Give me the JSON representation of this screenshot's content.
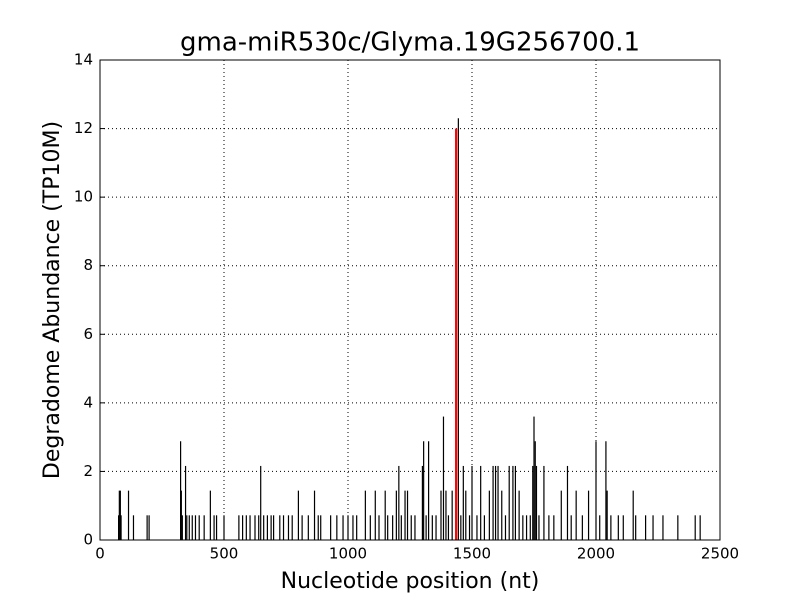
{
  "chart_data": {
    "type": "stem",
    "title": "gma-miR530c/Glyma.19G256700.1",
    "x_label": "Nucleotide position (nt)",
    "y_label": "Degradome Abundance (TP10M)",
    "xlim": [
      0,
      2500
    ],
    "xticks": [
      0,
      500,
      1000,
      1500,
      2000,
      2500
    ],
    "ylim": [
      0,
      14
    ],
    "yticks": [
      0,
      2,
      4,
      6,
      8,
      10,
      12,
      14
    ],
    "grid": true,
    "series": [
      {
        "color": "#000000",
        "x": [
          75,
          78,
          82,
          85,
          115,
          135,
          190,
          198,
          325,
          328,
          332,
          345,
          350,
          360,
          372,
          385,
          400,
          420,
          445,
          460,
          470,
          500,
          560,
          575,
          590,
          605,
          625,
          640,
          648,
          660,
          675,
          690,
          700,
          725,
          740,
          760,
          775,
          800,
          815,
          840,
          865,
          880,
          890,
          930,
          955,
          980,
          1000,
          1020,
          1035,
          1070,
          1090,
          1110,
          1125,
          1150,
          1160,
          1180,
          1195,
          1205,
          1215,
          1230,
          1240,
          1255,
          1270,
          1300,
          1305,
          1315,
          1325,
          1340,
          1355,
          1375,
          1385,
          1395,
          1405,
          1420,
          1445,
          1455,
          1465,
          1475,
          1490,
          1500,
          1520,
          1535,
          1550,
          1570,
          1585,
          1595,
          1605,
          1620,
          1635,
          1650,
          1665,
          1675,
          1690,
          1705,
          1720,
          1735,
          1745,
          1750,
          1755,
          1760,
          1770,
          1790,
          1810,
          1830,
          1860,
          1885,
          1900,
          1920,
          1945,
          1970,
          2000,
          2015,
          2040,
          2045,
          2060,
          2090,
          2110,
          2150,
          2160,
          2200,
          2230,
          2270,
          2330,
          2400,
          2420
        ],
        "values": [
          0.72,
          1.44,
          1.44,
          0.72,
          1.44,
          0.72,
          0.72,
          0.72,
          2.88,
          1.44,
          0.72,
          2.16,
          0.72,
          0.72,
          0.72,
          0.72,
          0.72,
          0.72,
          1.44,
          0.72,
          0.72,
          0.72,
          0.72,
          0.72,
          0.72,
          0.72,
          0.72,
          0.72,
          2.16,
          0.72,
          0.72,
          0.72,
          0.72,
          0.72,
          0.72,
          0.72,
          0.72,
          1.44,
          0.72,
          0.72,
          1.44,
          0.72,
          0.72,
          0.72,
          0.72,
          0.72,
          0.72,
          0.72,
          0.72,
          1.44,
          0.72,
          1.44,
          0.72,
          1.44,
          0.72,
          0.72,
          1.44,
          2.16,
          0.72,
          1.44,
          1.44,
          0.72,
          0.72,
          2.16,
          2.88,
          0.72,
          2.88,
          0.72,
          0.72,
          1.44,
          3.6,
          1.44,
          0.72,
          1.44,
          12.3,
          0.72,
          2.16,
          1.44,
          0.72,
          2.16,
          0.72,
          2.16,
          0.72,
          1.44,
          2.16,
          2.16,
          2.16,
          1.44,
          0.72,
          2.16,
          2.16,
          2.16,
          1.44,
          0.72,
          0.72,
          0.72,
          2.16,
          3.6,
          2.88,
          2.16,
          0.72,
          2.16,
          0.72,
          0.72,
          1.44,
          2.16,
          0.72,
          1.44,
          0.72,
          1.44,
          2.88,
          0.72,
          2.88,
          1.44,
          0.72,
          0.72,
          0.72,
          1.44,
          0.72,
          0.72,
          0.72,
          0.72,
          0.72,
          0.72,
          0.72
        ]
      },
      {
        "color": "#ff0000",
        "x": [
          1436
        ],
        "values": [
          12
        ]
      }
    ]
  }
}
